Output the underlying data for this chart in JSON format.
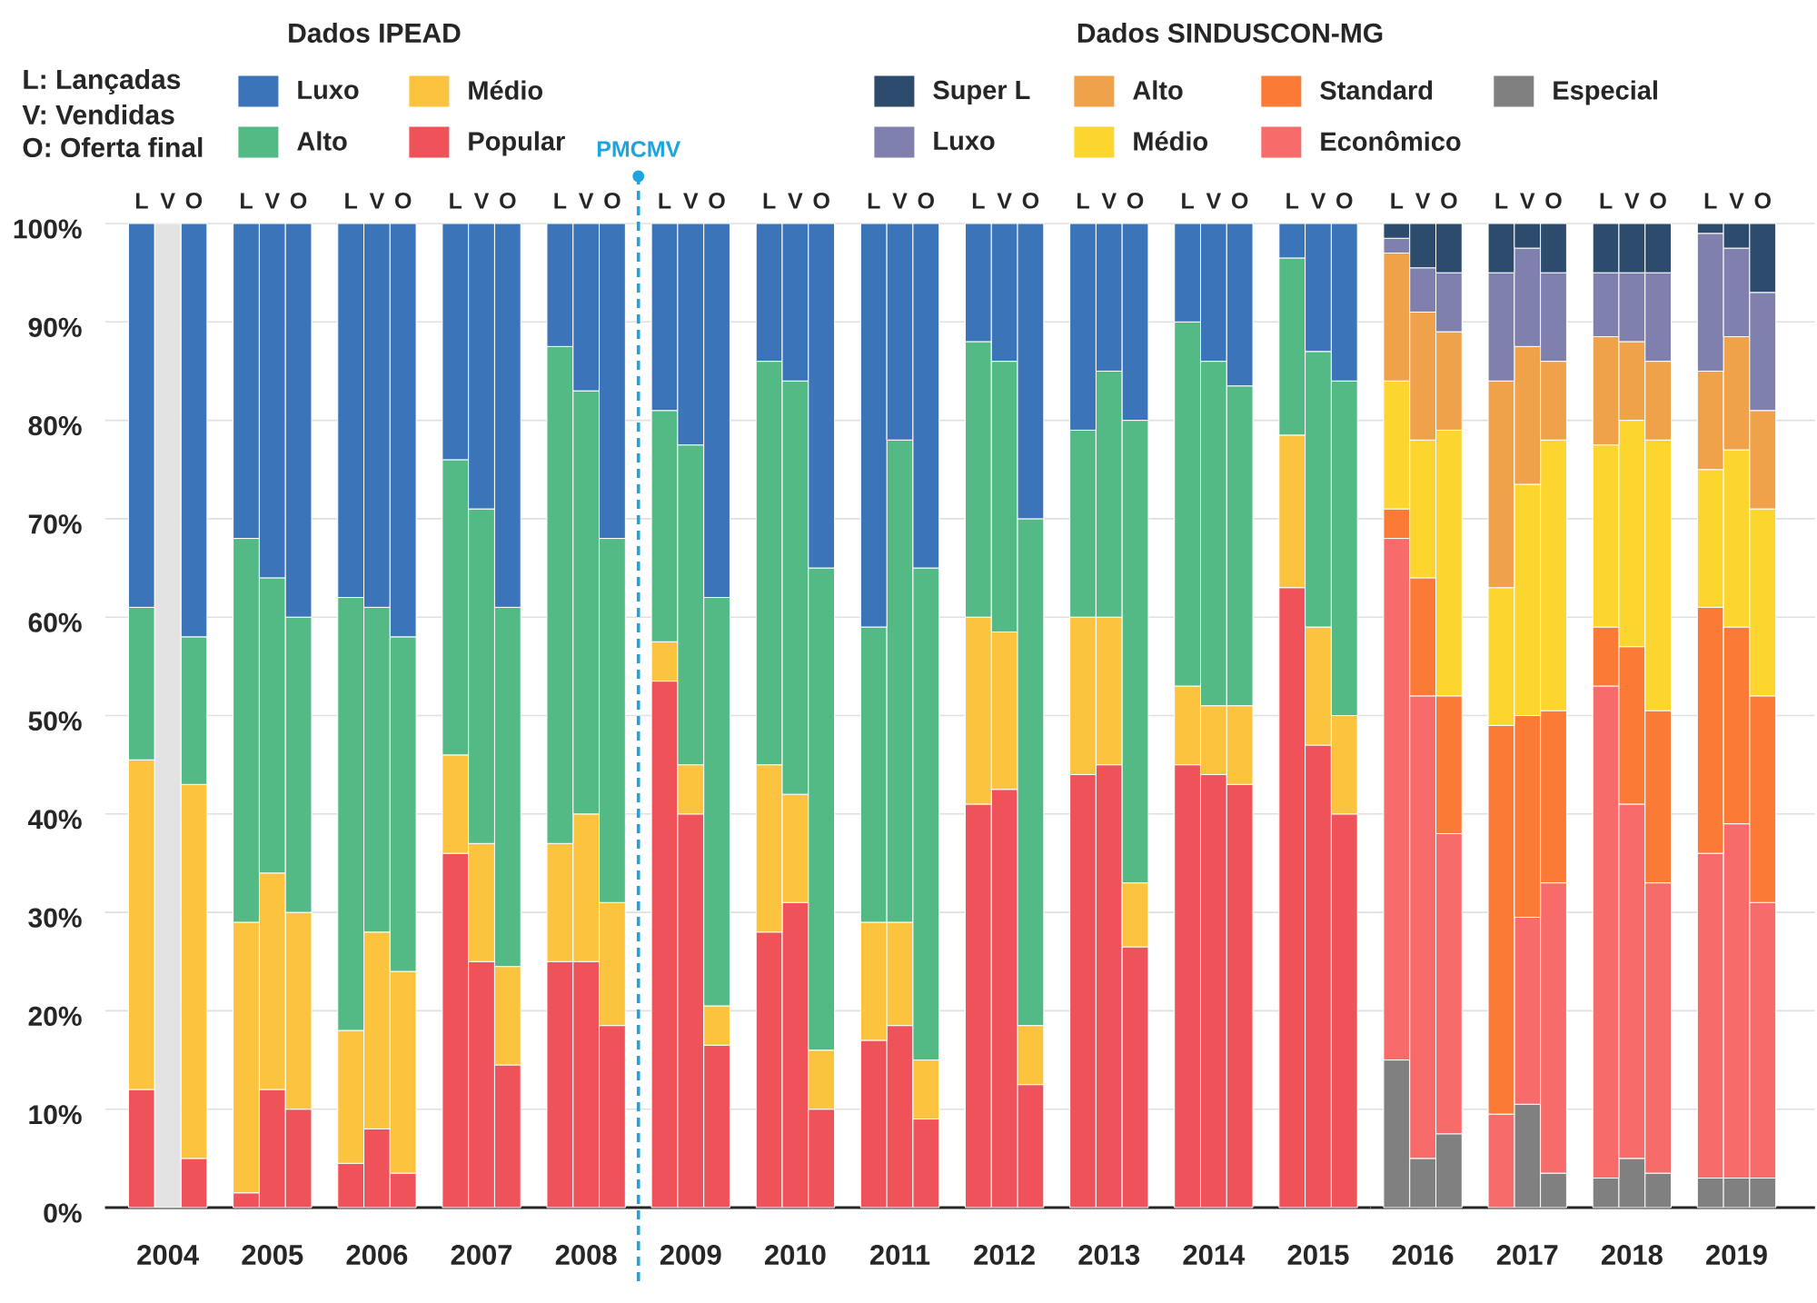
{
  "chart_data": [
    {
      "type": "bar",
      "stacked": true,
      "legend_title": "Dados IPEAD",
      "legend": "top left",
      "grid": "y",
      "annotations": [
        "L: Lançadas",
        "V: Vendidas",
        "O: Oferta final",
        {
          "text": "L",
          "x": 2003.75,
          "y": 100
        },
        {
          "text": "V",
          "x": 2004,
          "y": 100
        },
        {
          "text": "O",
          "x": 2004.25,
          "y": 100
        },
        {
          "text": "L",
          "x": 2004.75,
          "y": 100
        },
        {
          "text": "V",
          "x": 2005,
          "y": 100
        },
        {
          "text": "O",
          "x": 2005.25,
          "y": 100
        },
        {
          "text": "L",
          "x": 2005.75,
          "y": 100
        },
        {
          "text": "V",
          "x": 2006,
          "y": 100
        },
        {
          "text": "O",
          "x": 2006.25,
          "y": 100
        },
        {
          "text": "L",
          "x": 2006.75,
          "y": 100
        },
        {
          "text": "V",
          "x": 2007,
          "y": 100
        },
        {
          "text": "O",
          "x": 2007.25,
          "y": 100
        },
        {
          "text": "L",
          "x": 2007.75,
          "y": 100
        },
        {
          "text": "V",
          "x": 2008,
          "y": 100
        },
        {
          "text": "O",
          "x": 2008.25,
          "y": 100
        },
        {
          "text": "L",
          "x": 2008.75,
          "y": 100
        },
        {
          "text": "V",
          "x": 2009,
          "y": 100
        },
        {
          "text": "O",
          "x": 2009.25,
          "y": 100
        },
        {
          "text": "L",
          "x": 2009.75,
          "y": 100
        },
        {
          "text": "V",
          "x": 2010,
          "y": 100
        },
        {
          "text": "O",
          "x": 2010.25,
          "y": 100
        },
        {
          "text": "L",
          "x": 2010.75,
          "y": 100
        },
        {
          "text": "V",
          "x": 2011,
          "y": 100
        },
        {
          "text": "O",
          "x": 2011.25,
          "y": 100
        },
        {
          "text": "L",
          "x": 2011.75,
          "y": 100
        },
        {
          "text": "V",
          "x": 2012,
          "y": 100
        },
        {
          "text": "O",
          "x": 2012.25,
          "y": 100
        },
        {
          "text": "L",
          "x": 2012.75,
          "y": 100
        },
        {
          "text": "V",
          "x": 2013,
          "y": 100
        },
        {
          "text": "O",
          "x": 2013.25,
          "y": 100
        },
        {
          "text": "L",
          "x": 2013.75,
          "y": 100
        },
        {
          "text": "V",
          "x": 2014,
          "y": 100
        },
        {
          "text": "O",
          "x": 2014.25,
          "y": 100
        },
        {
          "text": "L",
          "x": 2014.75,
          "y": 100
        },
        {
          "text": "V",
          "x": 2015,
          "y": 100
        },
        {
          "text": "O",
          "x": 2015.25,
          "y": 100
        }
      ],
      "x": [
        2003.75,
        2004,
        2004.25,
        2004.75,
        2005,
        2005.25,
        2005.75,
        2006,
        2006.25,
        2006.75,
        2007,
        2007.25,
        2007.75,
        2008,
        2008.25,
        2008.75,
        2009,
        2009.25,
        2009.75,
        2010,
        2010.25,
        2010.75,
        2011,
        2011.25,
        2011.75,
        2012,
        2012.25,
        2012.75,
        2013,
        2013.25,
        2013.75,
        2014,
        2014.25,
        2014.75,
        2015,
        2015.25
      ],
      "xlim": [
        2003.4,
        2015.5
      ],
      "xticks": [
        2004,
        2005,
        2006,
        2007,
        2008,
        2009,
        2010,
        2011,
        2012,
        2013,
        2014,
        2015
      ],
      "ylim": [
        0,
        100
      ],
      "yticks": [
        {
          "value": 0,
          "label": "0%"
        },
        {
          "value": 10,
          "label": "10%"
        },
        {
          "value": 20,
          "label": "20%"
        },
        {
          "value": 30,
          "label": "30%"
        },
        {
          "value": 40,
          "label": "40%"
        },
        {
          "value": 50,
          "label": "50%"
        },
        {
          "value": 60,
          "label": "60%"
        },
        {
          "value": 70,
          "label": "70%"
        },
        {
          "value": 80,
          "label": "80%"
        },
        {
          "value": 90,
          "label": "90%"
        },
        {
          "value": 100,
          "label": "100%"
        }
      ],
      "ref_lines": [
        {
          "axis": "x",
          "value": 2008.5,
          "label": "PMCMV",
          "color": "#1ea4dd",
          "line_style": "dashed"
        }
      ],
      "series": [
        {
          "name": "Popular",
          "color": "#f0525a",
          "values": [
            12,
            null,
            5,
            1.5,
            12,
            10,
            4.5,
            8,
            3.5,
            36,
            25,
            14.5,
            25,
            25,
            18.5,
            53.5,
            40,
            16.5,
            28,
            31,
            10,
            17,
            18.5,
            9,
            41,
            42.5,
            12.5,
            44,
            45,
            26.5,
            45,
            44,
            43,
            63,
            47,
            40
          ]
        },
        {
          "name": "Médio",
          "color": "#fcc43e",
          "values": [
            33.5,
            null,
            38,
            27.5,
            22,
            20,
            13.5,
            20,
            20.5,
            10,
            12,
            10,
            12,
            15,
            12.5,
            4,
            5,
            4,
            17,
            11,
            6,
            12,
            10.5,
            6,
            19,
            16,
            6,
            16,
            15,
            6.5,
            8,
            7,
            8,
            15.5,
            12,
            10
          ]
        },
        {
          "name": "Alto",
          "color": "#53ba86",
          "values": [
            15.5,
            null,
            15,
            39,
            30,
            30,
            44,
            33,
            34,
            30,
            34,
            36.5,
            50.5,
            43,
            37,
            23.5,
            32.5,
            41.5,
            41,
            42,
            49,
            30,
            49,
            50,
            28,
            27.5,
            51.5,
            19,
            25,
            47,
            37,
            35,
            32.5,
            18,
            28,
            34
          ]
        },
        {
          "name": "Luxo",
          "color": "#3c74ba",
          "values": [
            39,
            null,
            42,
            32,
            36,
            40,
            38,
            39,
            42,
            24,
            29,
            39,
            12.5,
            17,
            32,
            19,
            22.5,
            38,
            14,
            16,
            35,
            41,
            22,
            35,
            12,
            14,
            30,
            21,
            15,
            20,
            10,
            14,
            16.5,
            3.5,
            13,
            16
          ]
        },
        {
          "color": "#e3e3e3",
          "values": [
            null,
            100,
            null,
            null,
            null,
            null,
            null,
            null,
            null,
            null,
            null,
            null,
            null,
            null,
            null,
            null,
            null,
            null,
            null,
            null,
            null,
            null,
            null,
            null,
            null,
            null,
            null,
            null,
            null,
            null,
            null,
            null,
            null,
            null,
            null,
            null
          ]
        }
      ]
    },
    {
      "type": "bar",
      "stacked": true,
      "legend_title": "Dados SINDUSCON-MG",
      "legend": "top left",
      "grid": "y",
      "tick_labels": "x",
      "annotations": [
        {
          "text": "L",
          "x": 2015.75,
          "y": 100
        },
        {
          "text": "V",
          "x": 2016,
          "y": 100
        },
        {
          "text": "O",
          "x": 2016.25,
          "y": 100
        },
        {
          "text": "L",
          "x": 2016.75,
          "y": 100
        },
        {
          "text": "V",
          "x": 2017,
          "y": 100
        },
        {
          "text": "O",
          "x": 2017.25,
          "y": 100
        },
        {
          "text": "L",
          "x": 2017.75,
          "y": 100
        },
        {
          "text": "V",
          "x": 2018,
          "y": 100
        },
        {
          "text": "O",
          "x": 2018.25,
          "y": 100
        },
        {
          "text": "L",
          "x": 2018.75,
          "y": 100
        },
        {
          "text": "V",
          "x": 2019,
          "y": 100
        },
        {
          "text": "O",
          "x": 2019.25,
          "y": 100
        }
      ],
      "x": [
        2015.75,
        2016,
        2016.25,
        2016.75,
        2017,
        2017.25,
        2017.75,
        2018,
        2018.25,
        2018.75,
        2019,
        2019.25
      ],
      "xlim": [
        2015.5,
        2019.75
      ],
      "xticks": [
        2016,
        2017,
        2018,
        2019
      ],
      "ylim": [
        0,
        100
      ],
      "yticks": [
        {
          "value": 0,
          "label": null
        },
        {
          "value": 10,
          "label": null
        },
        {
          "value": 20,
          "label": null
        },
        {
          "value": 30,
          "label": null
        },
        {
          "value": 40,
          "label": null
        },
        {
          "value": 50,
          "label": null
        },
        {
          "value": 60,
          "label": null
        },
        {
          "value": 70,
          "label": null
        },
        {
          "value": 80,
          "label": null
        },
        {
          "value": 90,
          "label": null
        },
        {
          "value": 100,
          "label": null
        }
      ],
      "series": [
        {
          "name": "Especial",
          "color": "#808080",
          "values": [
            15,
            5,
            7.5,
            0,
            10.5,
            3.5,
            3,
            5,
            3.5,
            3,
            3,
            3
          ]
        },
        {
          "name": "Econômico",
          "color": "#f76b6a",
          "values": [
            53,
            47,
            30.5,
            9.5,
            19,
            29.5,
            50,
            36,
            29.5,
            33,
            36,
            28
          ]
        },
        {
          "name": "Standard",
          "color": "#fb7b36",
          "values": [
            3,
            12,
            14,
            39.5,
            20.5,
            17.5,
            6,
            16,
            17.5,
            25,
            20,
            21
          ]
        },
        {
          "name": "Médio",
          "color": "#fdd52f",
          "values": [
            13,
            14,
            27,
            14,
            23.5,
            27.5,
            18.5,
            23,
            27.5,
            14,
            18,
            19
          ]
        },
        {
          "name": "Alto",
          "color": "#f0a24a",
          "values": [
            13,
            13,
            10,
            21,
            14,
            8,
            11,
            8,
            8,
            10,
            11.5,
            10
          ]
        },
        {
          "name": "Luxo",
          "color": "#7f80ad",
          "values": [
            1.5,
            4.5,
            6,
            11,
            10,
            9,
            6.5,
            7,
            9,
            14,
            9,
            12
          ]
        },
        {
          "name": "Super L",
          "color": "#2c4b6d",
          "values": [
            1.5,
            4.5,
            5,
            5,
            2.5,
            5,
            5,
            5,
            5,
            1,
            2.5,
            7
          ]
        }
      ]
    }
  ]
}
